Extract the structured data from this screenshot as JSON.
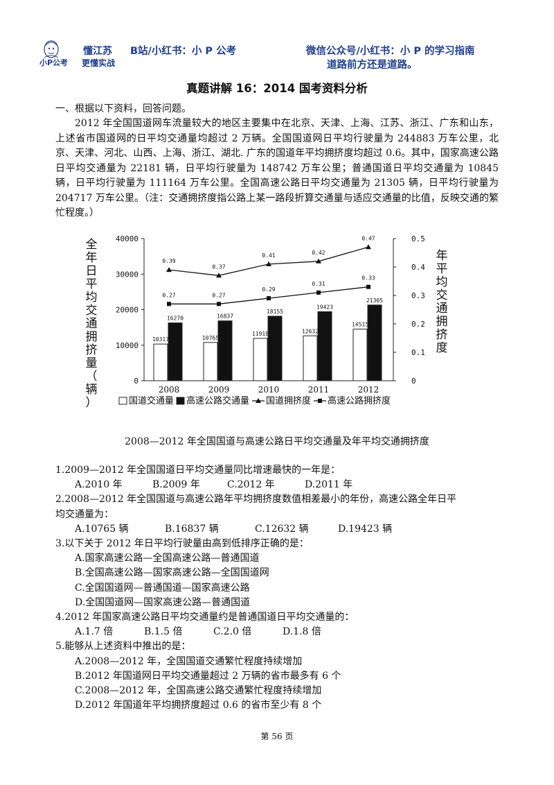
{
  "header": {
    "logo_top": "懂江苏",
    "logo_bottom_left": "小P公考",
    "logo_bottom_right": "更懂实战",
    "left_text": "B站/小红书：小 P 公考",
    "right_line1": "微信公众号/小红书：小 P 的学习指南",
    "right_line2": "道路前方还是道路。"
  },
  "title": "真题讲解 16：2014 国考资料分析",
  "section": {
    "heading": "一、根据以下资料，回答问题。",
    "body": "2012 年全国国道网车流量较大的地区主要集中在北京、天津、上海、江苏、浙江、广东和山东，上述省市国道网的日平均交通量均超过 2 万辆。全国国道网日平均行驶量为 244883 万车公里，北京、天津、河北、山西、上海、浙江、湖北. 广东的国道年平均拥挤度均超过 0.6。其中，国家高速公路日平均交通量为 22181 辆，日平均行驶量为 148742 万车公里；普通国道日平均交通量为 10845 辆，日平均行驶量为 111164 万车公里。全国高速公路日平均交通量为 21305 辆，日平均行驶量为 204717 万车公里。（注：交通拥挤度指公路上某一路段折算交通量与适应交通量的比值，反映交通的繁忙程度。）"
  },
  "chart_data": {
    "type": "bar",
    "categories": [
      "2008",
      "2009",
      "2010",
      "2011",
      "2012"
    ],
    "series": [
      {
        "name": "国道交通量",
        "kind": "bar",
        "axis": "left",
        "values": [
          10317,
          10765,
          11918,
          12632,
          14515
        ],
        "color": "#ffffff"
      },
      {
        "name": "高速公路交通量",
        "kind": "bar",
        "axis": "left",
        "values": [
          16270,
          16837,
          18155,
          19423,
          21305
        ],
        "color": "#111111"
      },
      {
        "name": "国道拥挤度",
        "kind": "line",
        "axis": "right",
        "marker": "triangle",
        "values": [
          0.39,
          0.37,
          0.41,
          0.42,
          0.47
        ],
        "labels": [
          "0.39",
          "0.37",
          "0.41",
          "0.42",
          "0.47"
        ]
      },
      {
        "name": "高速公路拥挤度",
        "kind": "line",
        "axis": "right",
        "marker": "square",
        "values": [
          0.27,
          0.27,
          0.29,
          0.31,
          0.33
        ],
        "labels": [
          "0.27",
          "0.27",
          "0.29",
          "0.31",
          "0.33"
        ]
      }
    ],
    "ylabel": "全年日平均交通拥挤量（辆）",
    "y2label": "年平均交通拥挤度",
    "ylim": [
      0,
      40000
    ],
    "y2lim": [
      0,
      0.5
    ],
    "yticks": [
      "0",
      "10000",
      "20000",
      "30000",
      "40000"
    ],
    "y2ticks": [
      "0",
      "0.1",
      "0.2",
      "0.3",
      "0.4",
      "0.5"
    ],
    "legend_position": "bottom",
    "caption": "2008—2012 年全国国道与高速公路日平均交通量及年平均交通拥挤度"
  },
  "questions": [
    {
      "stem": "1.2009—2012 年全国国道日平均交通量同比增速最快的一年是：",
      "layout": "row",
      "options": [
        "A.2010 年",
        "B.2009 年",
        "C.2012 年",
        "D.2011 年"
      ]
    },
    {
      "stem": "2.2008—2012 年全国国道与高速公路年平均拥挤度数值相差最小的年份，高速公路全年日平",
      "stem_cont": "均交通量为：",
      "layout": "row",
      "options": [
        "A.10765 辆",
        "B.16837 辆",
        "C.12632 辆",
        "D.19423 辆"
      ]
    },
    {
      "stem": "3.以下关于 2012 年日平均行驶量由高到低排序正确的是：",
      "layout": "column",
      "options": [
        "A.国家高速公路—全国高速公路—普通国道",
        "B.全国高速公路—国家高速公路—全国国道网",
        "C.全国国道网—普通国道—国家高速公路",
        "D.全国国道网—国家高速公路—普通国道"
      ]
    },
    {
      "stem": "4.2012 年国家高速公路日平均交通量约是普通国道日平均交通量的：",
      "layout": "row",
      "options": [
        "A.1.7 倍",
        "B.1.5 倍",
        "C.2.0 倍",
        "D.1.8 倍"
      ]
    },
    {
      "stem": "5.能够从上述资料中推出的是：",
      "layout": "column",
      "options": [
        "A.2008—2012 年，全国国道交通繁忙程度持续增加",
        "B.2012 年国道网日平均交通量超过 2 万辆的省市最多有 6 个",
        "C.2008—2012 年，全国高速公路交通繁忙程度持续增加",
        "D.2012 年国道年平均拥挤度超过 0.6 的省市至少有 8 个"
      ]
    }
  ],
  "footer": {
    "page": "第 56 页"
  }
}
